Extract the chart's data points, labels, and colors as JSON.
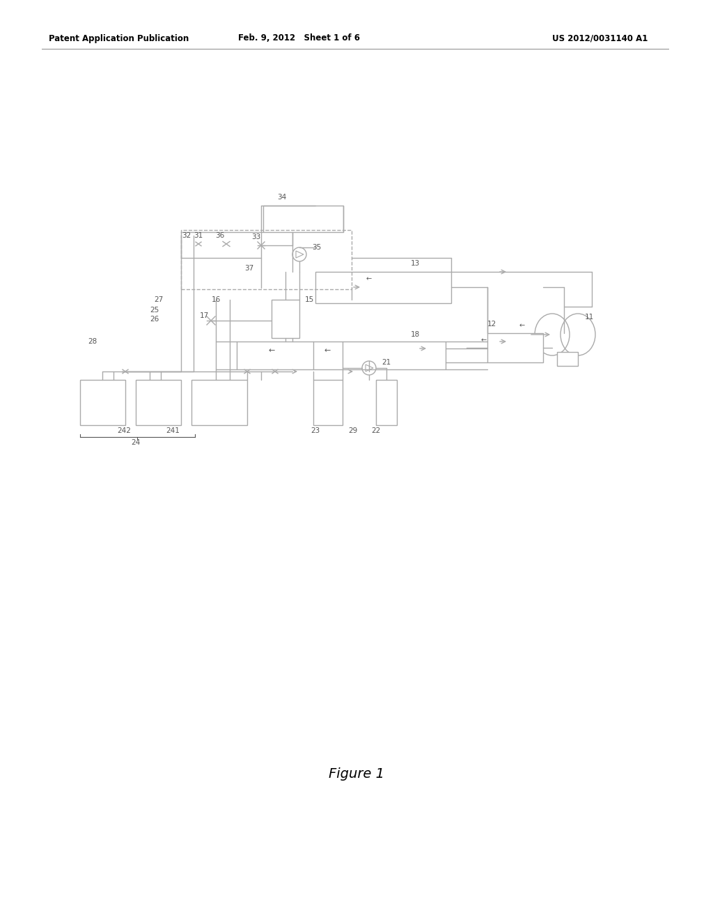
{
  "title_left": "Patent Application Publication",
  "title_mid": "Feb. 9, 2012   Sheet 1 of 6",
  "title_right": "US 2012/0031140 A1",
  "figure_label": "Figure 1",
  "bg_color": "#ffffff",
  "line_color": "#aaaaaa",
  "dashed_color": "#aaaaaa",
  "text_color": "#555555",
  "header_color": "#000000"
}
